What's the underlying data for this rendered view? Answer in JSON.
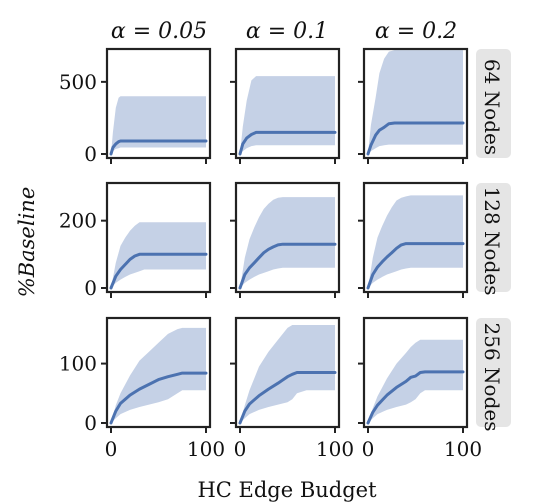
{
  "chart_data": {
    "type": "line",
    "xlabel": "HC Edge Budget",
    "ylabel": "%Baseline",
    "col_titles": [
      "α = 0.05",
      "α = 0.1",
      "α = 0.2"
    ],
    "row_titles": [
      "64 Nodes",
      "128 Nodes",
      "256 Nodes"
    ],
    "xlim": [
      0,
      100
    ],
    "x_ticks": [
      0,
      100
    ],
    "rows": [
      {
        "ylim": [
          0,
          700
        ],
        "y_ticks": [
          0,
          500
        ]
      },
      {
        "ylim": [
          0,
          300
        ],
        "y_ticks": [
          0,
          200
        ]
      },
      {
        "ylim": [
          0,
          170
        ],
        "y_ticks": [
          0,
          100
        ]
      }
    ],
    "line_color": "#4c72b0",
    "band_color": "#c5d1e6",
    "strip_color": "#e5e5e5",
    "panels": [
      {
        "row": 0,
        "col": 0,
        "x": [
          0,
          2,
          5,
          8,
          10,
          15,
          20,
          30,
          40,
          50,
          60,
          70,
          80,
          90,
          100
        ],
        "y": [
          0,
          45,
          70,
          85,
          90,
          90,
          90,
          90,
          90,
          90,
          90,
          90,
          90,
          90,
          90
        ],
        "lower": [
          0,
          20,
          35,
          40,
          45,
          45,
          45,
          45,
          45,
          45,
          45,
          45,
          45,
          45,
          45
        ],
        "upper": [
          0,
          150,
          320,
          390,
          400,
          400,
          400,
          400,
          400,
          400,
          400,
          400,
          400,
          400,
          400
        ]
      },
      {
        "row": 0,
        "col": 1,
        "x": [
          0,
          3,
          7,
          12,
          17,
          22,
          28,
          40,
          50,
          60,
          70,
          80,
          90,
          100
        ],
        "y": [
          0,
          70,
          110,
          135,
          150,
          150,
          150,
          150,
          150,
          150,
          150,
          150,
          150,
          150
        ],
        "lower": [
          0,
          20,
          40,
          55,
          60,
          60,
          60,
          60,
          60,
          60,
          60,
          60,
          60,
          60
        ],
        "upper": [
          0,
          190,
          370,
          510,
          540,
          540,
          540,
          540,
          540,
          540,
          540,
          540,
          540,
          540
        ]
      },
      {
        "row": 0,
        "col": 2,
        "x": [
          0,
          3,
          8,
          12,
          17,
          22,
          28,
          35,
          50,
          60,
          70,
          80,
          90,
          100
        ],
        "y": [
          0,
          60,
          130,
          165,
          185,
          210,
          215,
          215,
          215,
          215,
          215,
          215,
          215,
          215
        ],
        "lower": [
          0,
          20,
          40,
          55,
          60,
          65,
          65,
          65,
          65,
          65,
          65,
          65,
          65,
          65
        ],
        "upper": [
          0,
          200,
          390,
          560,
          660,
          710,
          720,
          720,
          720,
          720,
          720,
          720,
          720,
          720
        ]
      },
      {
        "row": 1,
        "col": 0,
        "x": [
          0,
          5,
          10,
          15,
          20,
          25,
          30,
          35,
          40,
          50,
          60,
          70,
          80,
          90,
          100
        ],
        "y": [
          0,
          35,
          55,
          70,
          85,
          95,
          100,
          100,
          100,
          100,
          100,
          100,
          100,
          100,
          100
        ],
        "lower": [
          0,
          15,
          25,
          33,
          40,
          45,
          50,
          55,
          55,
          55,
          55,
          55,
          55,
          55,
          55
        ],
        "upper": [
          0,
          75,
          125,
          150,
          170,
          185,
          195,
          195,
          195,
          195,
          195,
          195,
          195,
          195,
          195
        ]
      },
      {
        "row": 1,
        "col": 1,
        "x": [
          0,
          5,
          10,
          15,
          20,
          25,
          30,
          35,
          40,
          45,
          50,
          60,
          70,
          80,
          90,
          100
        ],
        "y": [
          0,
          40,
          60,
          75,
          90,
          105,
          115,
          122,
          128,
          130,
          130,
          130,
          130,
          130,
          130,
          130
        ],
        "lower": [
          0,
          15,
          25,
          33,
          40,
          45,
          50,
          55,
          58,
          60,
          60,
          60,
          60,
          60,
          60,
          60
        ],
        "upper": [
          0,
          90,
          145,
          180,
          210,
          235,
          250,
          262,
          268,
          270,
          270,
          270,
          270,
          270,
          270,
          270
        ]
      },
      {
        "row": 1,
        "col": 2,
        "x": [
          0,
          5,
          10,
          15,
          20,
          25,
          30,
          35,
          40,
          45,
          50,
          60,
          70,
          80,
          90,
          100
        ],
        "y": [
          0,
          40,
          62,
          78,
          92,
          105,
          118,
          128,
          132,
          132,
          132,
          132,
          132,
          132,
          132,
          132
        ],
        "lower": [
          0,
          15,
          25,
          33,
          40,
          45,
          50,
          55,
          58,
          60,
          60,
          60,
          60,
          60,
          60,
          60
        ],
        "upper": [
          0,
          90,
          150,
          185,
          215,
          240,
          260,
          268,
          272,
          275,
          275,
          275,
          275,
          275,
          275,
          275
        ]
      },
      {
        "row": 2,
        "col": 0,
        "x": [
          0,
          5,
          10,
          20,
          30,
          40,
          50,
          60,
          70,
          75,
          80,
          90,
          100
        ],
        "y": [
          0,
          20,
          33,
          47,
          57,
          65,
          73,
          78,
          82,
          84,
          84,
          84,
          84
        ],
        "lower": [
          0,
          8,
          15,
          22,
          27,
          31,
          35,
          40,
          50,
          55,
          55,
          55,
          55
        ],
        "upper": [
          0,
          30,
          50,
          80,
          105,
          120,
          135,
          150,
          158,
          160,
          160,
          160,
          160
        ]
      },
      {
        "row": 2,
        "col": 1,
        "x": [
          0,
          5,
          10,
          20,
          30,
          40,
          50,
          55,
          60,
          70,
          80,
          90,
          100
        ],
        "y": [
          0,
          20,
          32,
          46,
          57,
          67,
          78,
          82,
          85,
          85,
          85,
          85,
          85
        ],
        "lower": [
          0,
          8,
          15,
          22,
          27,
          31,
          35,
          40,
          50,
          55,
          55,
          55,
          55
        ],
        "upper": [
          0,
          30,
          55,
          95,
          120,
          140,
          160,
          165,
          165,
          165,
          165,
          165,
          165
        ]
      },
      {
        "row": 2,
        "col": 2,
        "x": [
          0,
          5,
          10,
          20,
          30,
          40,
          45,
          50,
          55,
          60,
          70,
          80,
          90,
          100
        ],
        "y": [
          0,
          18,
          30,
          47,
          60,
          70,
          77,
          79,
          85,
          86,
          86,
          86,
          86,
          86
        ],
        "lower": [
          0,
          8,
          15,
          22,
          27,
          31,
          35,
          40,
          50,
          55,
          55,
          55,
          55,
          55
        ],
        "upper": [
          0,
          25,
          45,
          75,
          100,
          118,
          128,
          135,
          140,
          140,
          140,
          140,
          140,
          140
        ]
      }
    ]
  }
}
